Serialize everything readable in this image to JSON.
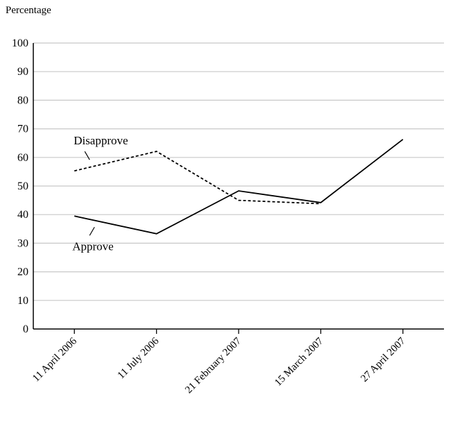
{
  "chart_data": {
    "type": "line",
    "title": "",
    "xlabel": "",
    "ylabel": "Percentage",
    "categories": [
      "11 April 2006",
      "11 July 2006",
      "21 February 2007",
      "15 March 2007",
      "27 April 2007"
    ],
    "series": [
      {
        "name": "Approve",
        "values": [
          39.5,
          33.3,
          48.3,
          44.2,
          66.3
        ],
        "style": "solid",
        "color": "#000000"
      },
      {
        "name": "Disapprove",
        "values": [
          55.3,
          62.1,
          45.0,
          43.8,
          null
        ],
        "style": "dashed",
        "color": "#000000"
      }
    ],
    "ylim": [
      0,
      100
    ],
    "yticks": [
      0,
      10,
      20,
      30,
      40,
      50,
      60,
      70,
      80,
      90,
      100
    ],
    "grid": true,
    "legend": "none"
  }
}
